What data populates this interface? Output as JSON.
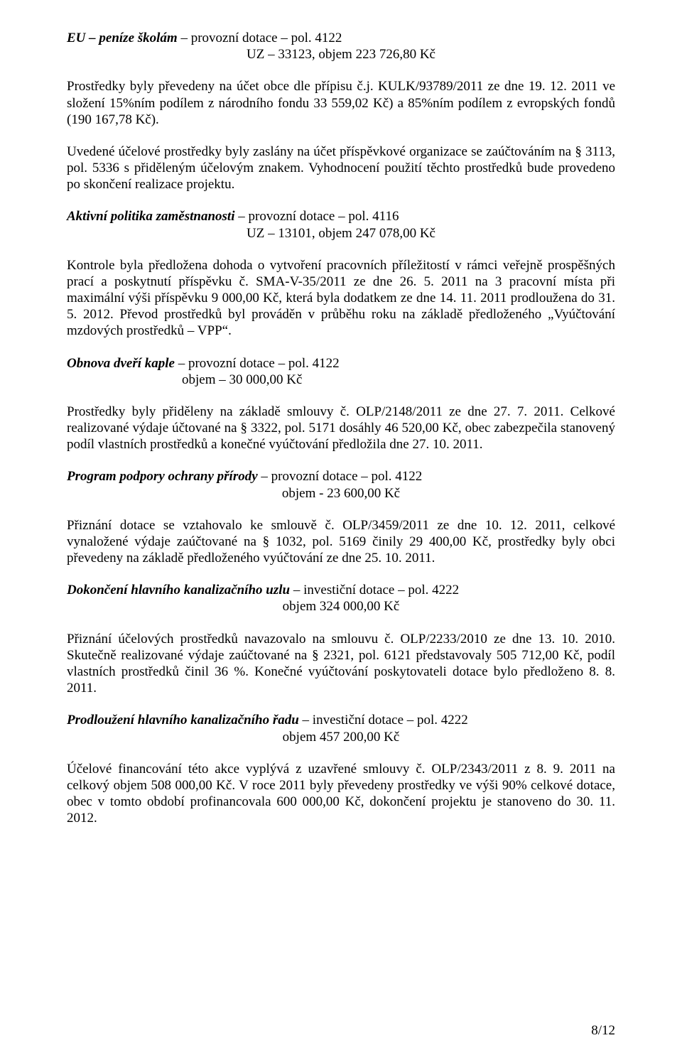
{
  "sec1": {
    "title_a": "EU – peníze školám",
    "title_b": " – provozní dotace – pol. 4122",
    "sub": "UZ – 33123, objem 223 726,80 Kč",
    "p1": "Prostředky byly převedeny na účet obce dle přípisu č.j. KULK/93789/2011 ze dne 19. 12. 2011 ve složení 15%ním podílem z národního fondu 33 559,02 Kč) a 85%ním podílem z evropských fondů (190 167,78 Kč).",
    "p2": "Uvedené účelové prostředky byly zaslány na účet příspěvkové organizace se zaúčtováním na § 3113, pol. 5336 s přiděleným účelovým znakem. Vyhodnocení použití těchto prostředků bude provedeno po skončení realizace projektu."
  },
  "sec2": {
    "title_a": "Aktivní politika zaměstnanosti",
    "title_b": " – provozní dotace – pol. 4116",
    "sub": "UZ – 13101, objem 247 078,00 Kč",
    "p1": "Kontrole byla předložena dohoda o vytvoření pracovních příležitostí v rámci veřejně prospěšných prací a poskytnutí příspěvku č. SMA-V-35/2011 ze dne 26. 5. 2011 na 3 pracovní místa při maximální výši příspěvku 9 000,00 Kč, která byla dodatkem ze dne 14. 11. 2011 prodloužena do 31. 5. 2012. Převod prostředků byl prováděn v průběhu roku na základě předloženého „Vyúčtování mzdových prostředků – VPP“."
  },
  "sec3": {
    "title_a": "Obnova dveří kaple",
    "title_b": " – provozní dotace – pol. 4122",
    "sub": "objem – 30 000,00 Kč",
    "p1": "Prostředky byly přiděleny na základě smlouvy č. OLP/2148/2011 ze dne 27. 7. 2011. Celkové realizované výdaje účtované na § 3322, pol. 5171 dosáhly 46 520,00 Kč, obec zabezpečila stanovený podíl vlastních prostředků a konečné vyúčtování předložila dne 27. 10. 2011."
  },
  "sec4": {
    "title_a": "Program podpory ochrany přírody",
    "title_b": " – provozní dotace – pol. 4122",
    "sub": "objem  - 23 600,00 Kč",
    "p1": "Přiznání dotace se vztahovalo ke smlouvě č. OLP/3459/2011 ze dne 10. 12. 2011, celkové vynaložené výdaje zaúčtované na § 1032, pol. 5169 činily 29 400,00 Kč, prostředky byly obci převedeny na základě předloženého vyúčtování ze dne 25. 10. 2011."
  },
  "sec5": {
    "title_a": "Dokončení hlavního kanalizačního uzlu",
    "title_b": " – investiční dotace – pol. 4222",
    "sub": "objem  324 000,00 Kč",
    "p1": "Přiznání účelových prostředků navazovalo na smlouvu č. OLP/2233/2010 ze dne 13. 10. 2010.  Skutečně realizované výdaje zaúčtované na § 2321, pol. 6121 představovaly 505 712,00 Kč, podíl vlastních prostředků činil 36 %. Konečné vyúčtování poskytovateli dotace bylo předloženo 8. 8. 2011."
  },
  "sec6": {
    "title_a": "Prodloužení hlavního kanalizačního řadu",
    "title_b": " – investiční dotace – pol. 4222",
    "sub": "objem  457 200,00 Kč",
    "p1": "Účelové financování této akce vyplývá z uzavřené smlouvy č. OLP/2343/2011 z 8. 9. 2011 na celkový objem 508 000,00 Kč. V roce 2011 byly převedeny prostředky ve výši 90% celkové dotace, obec v tomto období profinancovala 600 000,00 Kč, dokončení projektu je stanoveno do 30. 11. 2012."
  },
  "pagenum": "8/12"
}
